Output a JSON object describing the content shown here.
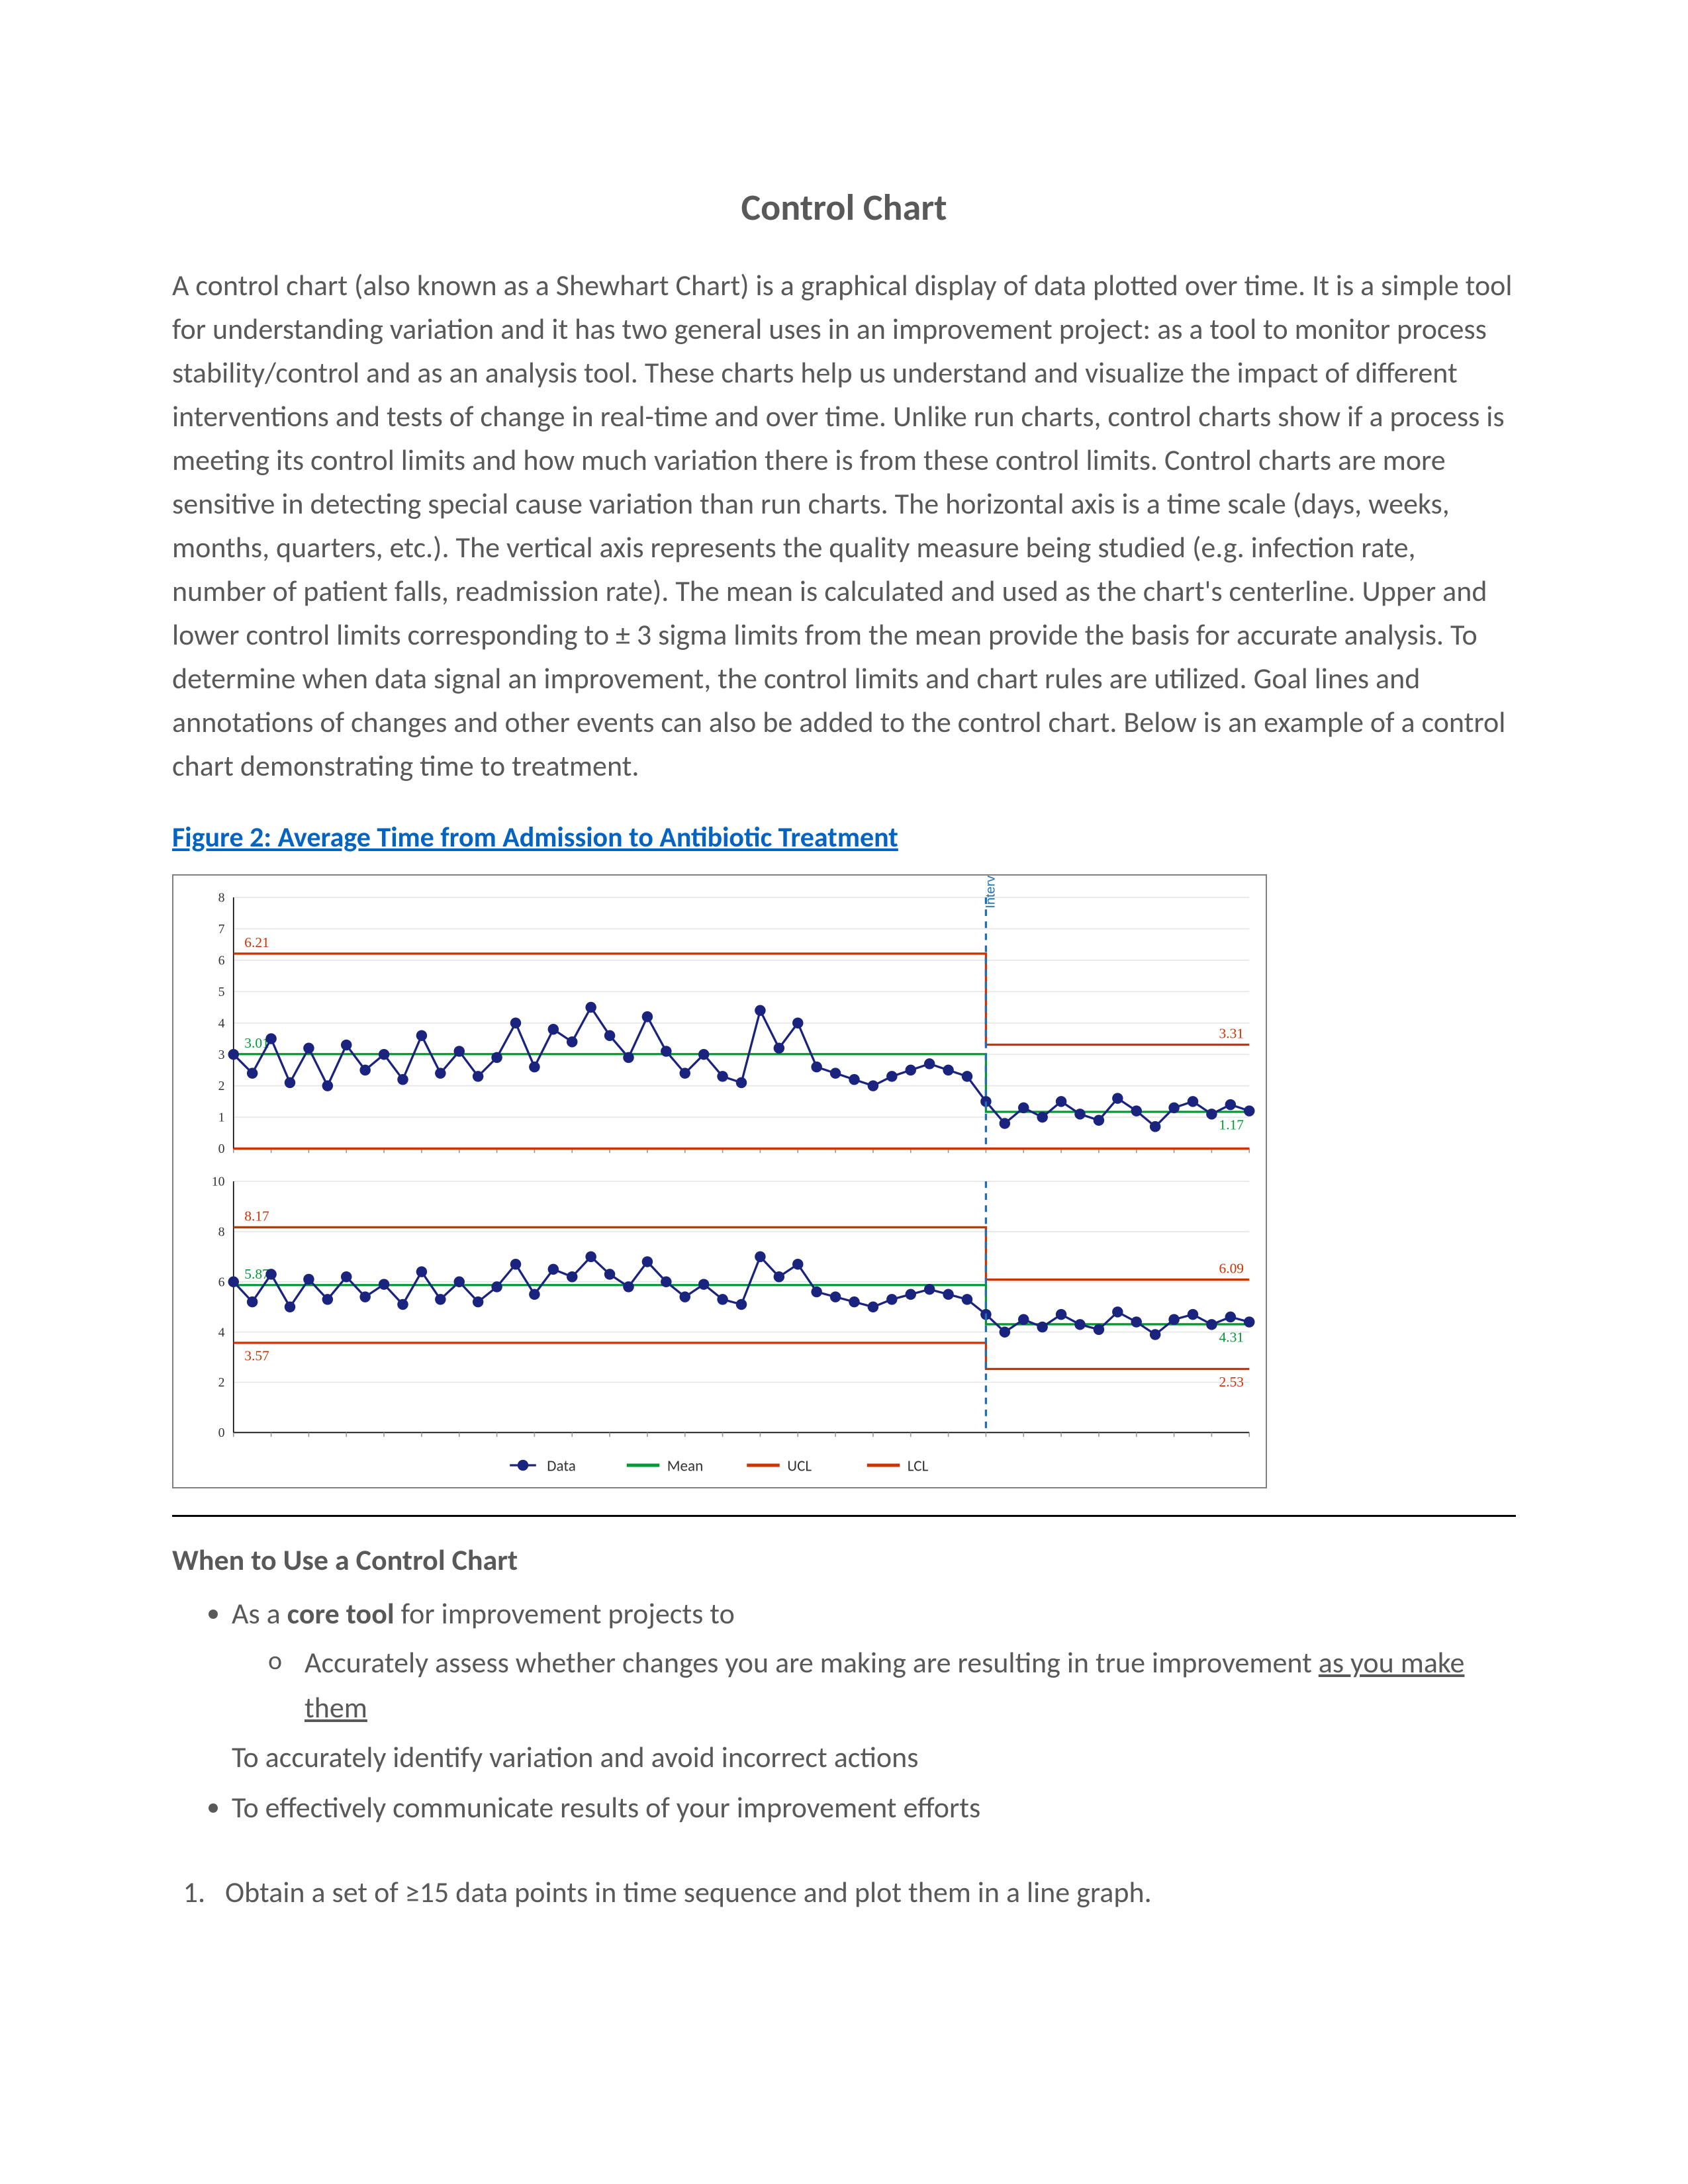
{
  "title": "Control Chart",
  "paragraph": "A control chart (also known as a Shewhart Chart) is a graphical display of data plotted over time. It is a simple tool for understanding variation and it has two general uses in an improvement project: as a tool to monitor process stability/control and as an analysis tool. These charts help us understand and visualize the impact of different interventions and tests of change in real-time and over time. Unlike run charts, control charts show if a process is meeting its control limits and how much variation there is from these control limits. Control charts are more sensitive in detecting special cause variation than run charts. The horizontal axis is a time scale (days, weeks, months, quarters, etc.). The vertical axis represents the quality measure being studied (e.g. infection rate, number of patient falls, readmission rate). The mean is calculated and used as the chart's centerline.  Upper and lower control limits corresponding to ± 3 sigma limits from the mean provide the basis for accurate analysis. To determine when data signal an improvement, the control limits and chart rules are utilized. Goal lines and annotations of changes and other events can also be added to the control chart. Below is an example of a control chart demonstrating time to treatment.",
  "figure_caption": "Figure 2: Average Time from Admission to Antibiotic Treatment",
  "chart": {
    "type": "line",
    "background_color": "#ffffff",
    "grid_color": "#e6e6e6",
    "axis_color": "#000000",
    "ucl_color": "#cc3300",
    "lcl_color": "#cc3300",
    "mean_color": "#009933",
    "series_color": "#1a237e",
    "marker_style": "circle",
    "marker_size": 5,
    "line_width": 2,
    "intervention_x": 40,
    "intervention_color": "#1f6fb2",
    "intervention_label": "Intervention",
    "top_panel": {
      "ylim": [
        0,
        8
      ],
      "yticks": [
        0,
        1,
        2,
        3,
        4,
        5,
        6,
        7,
        8
      ],
      "ucl": {
        "pre": 6.21,
        "post": 3.31
      },
      "mean": {
        "pre": 3.01,
        "post": 1.17
      },
      "lcl": {
        "pre": 0.0,
        "post": 0.0
      },
      "data": [
        3.0,
        2.4,
        3.5,
        2.1,
        3.2,
        2.0,
        3.3,
        2.5,
        3.0,
        2.2,
        3.6,
        2.4,
        3.1,
        2.3,
        2.9,
        4.0,
        2.6,
        3.8,
        3.4,
        4.5,
        3.6,
        2.9,
        4.2,
        3.1,
        2.4,
        3.0,
        2.3,
        2.1,
        4.4,
        3.2,
        4.0,
        2.6,
        2.4,
        2.2,
        2.0,
        2.3,
        2.5,
        2.7,
        2.5,
        2.3,
        1.5,
        0.8,
        1.3,
        1.0,
        1.5,
        1.1,
        0.9,
        1.6,
        1.2,
        0.7,
        1.3,
        1.5,
        1.1,
        1.4,
        1.2
      ]
    },
    "bottom_panel": {
      "ylim": [
        0,
        10
      ],
      "yticks": [
        0,
        2,
        4,
        6,
        8,
        10
      ],
      "ucl": {
        "pre": 8.17,
        "post": 6.09
      },
      "mean": {
        "pre": 5.87,
        "post": 4.31
      },
      "lcl": {
        "pre": 3.57,
        "post": 2.53
      },
      "data": [
        6.0,
        5.2,
        6.3,
        5.0,
        6.1,
        5.3,
        6.2,
        5.4,
        5.9,
        5.1,
        6.4,
        5.3,
        6.0,
        5.2,
        5.8,
        6.7,
        5.5,
        6.5,
        6.2,
        7.0,
        6.3,
        5.8,
        6.8,
        6.0,
        5.4,
        5.9,
        5.3,
        5.1,
        7.0,
        6.2,
        6.7,
        5.6,
        5.4,
        5.2,
        5.0,
        5.3,
        5.5,
        5.7,
        5.5,
        5.3,
        4.7,
        4.0,
        4.5,
        4.2,
        4.7,
        4.3,
        4.1,
        4.8,
        4.4,
        3.9,
        4.5,
        4.7,
        4.3,
        4.6,
        4.4
      ]
    },
    "legend": [
      "Data",
      "Mean",
      "UCL",
      "LCL"
    ]
  },
  "when_head": "When to Use a Control Chart",
  "bullets": {
    "b1_prefix": "As a ",
    "b1_bold": "core tool",
    "b1_suffix": " for improvement projects to",
    "b1_sub_prefix": "Accurately assess whether changes you are making are resulting in true improvement ",
    "b1_sub_uline": "as you make them",
    "b1_note": "To accurately identify variation and avoid incorrect actions",
    "b2": "To effectively communicate results of your improvement efforts"
  },
  "step1": "Obtain a set of ≥15 data points in time sequence and plot them in a line graph."
}
